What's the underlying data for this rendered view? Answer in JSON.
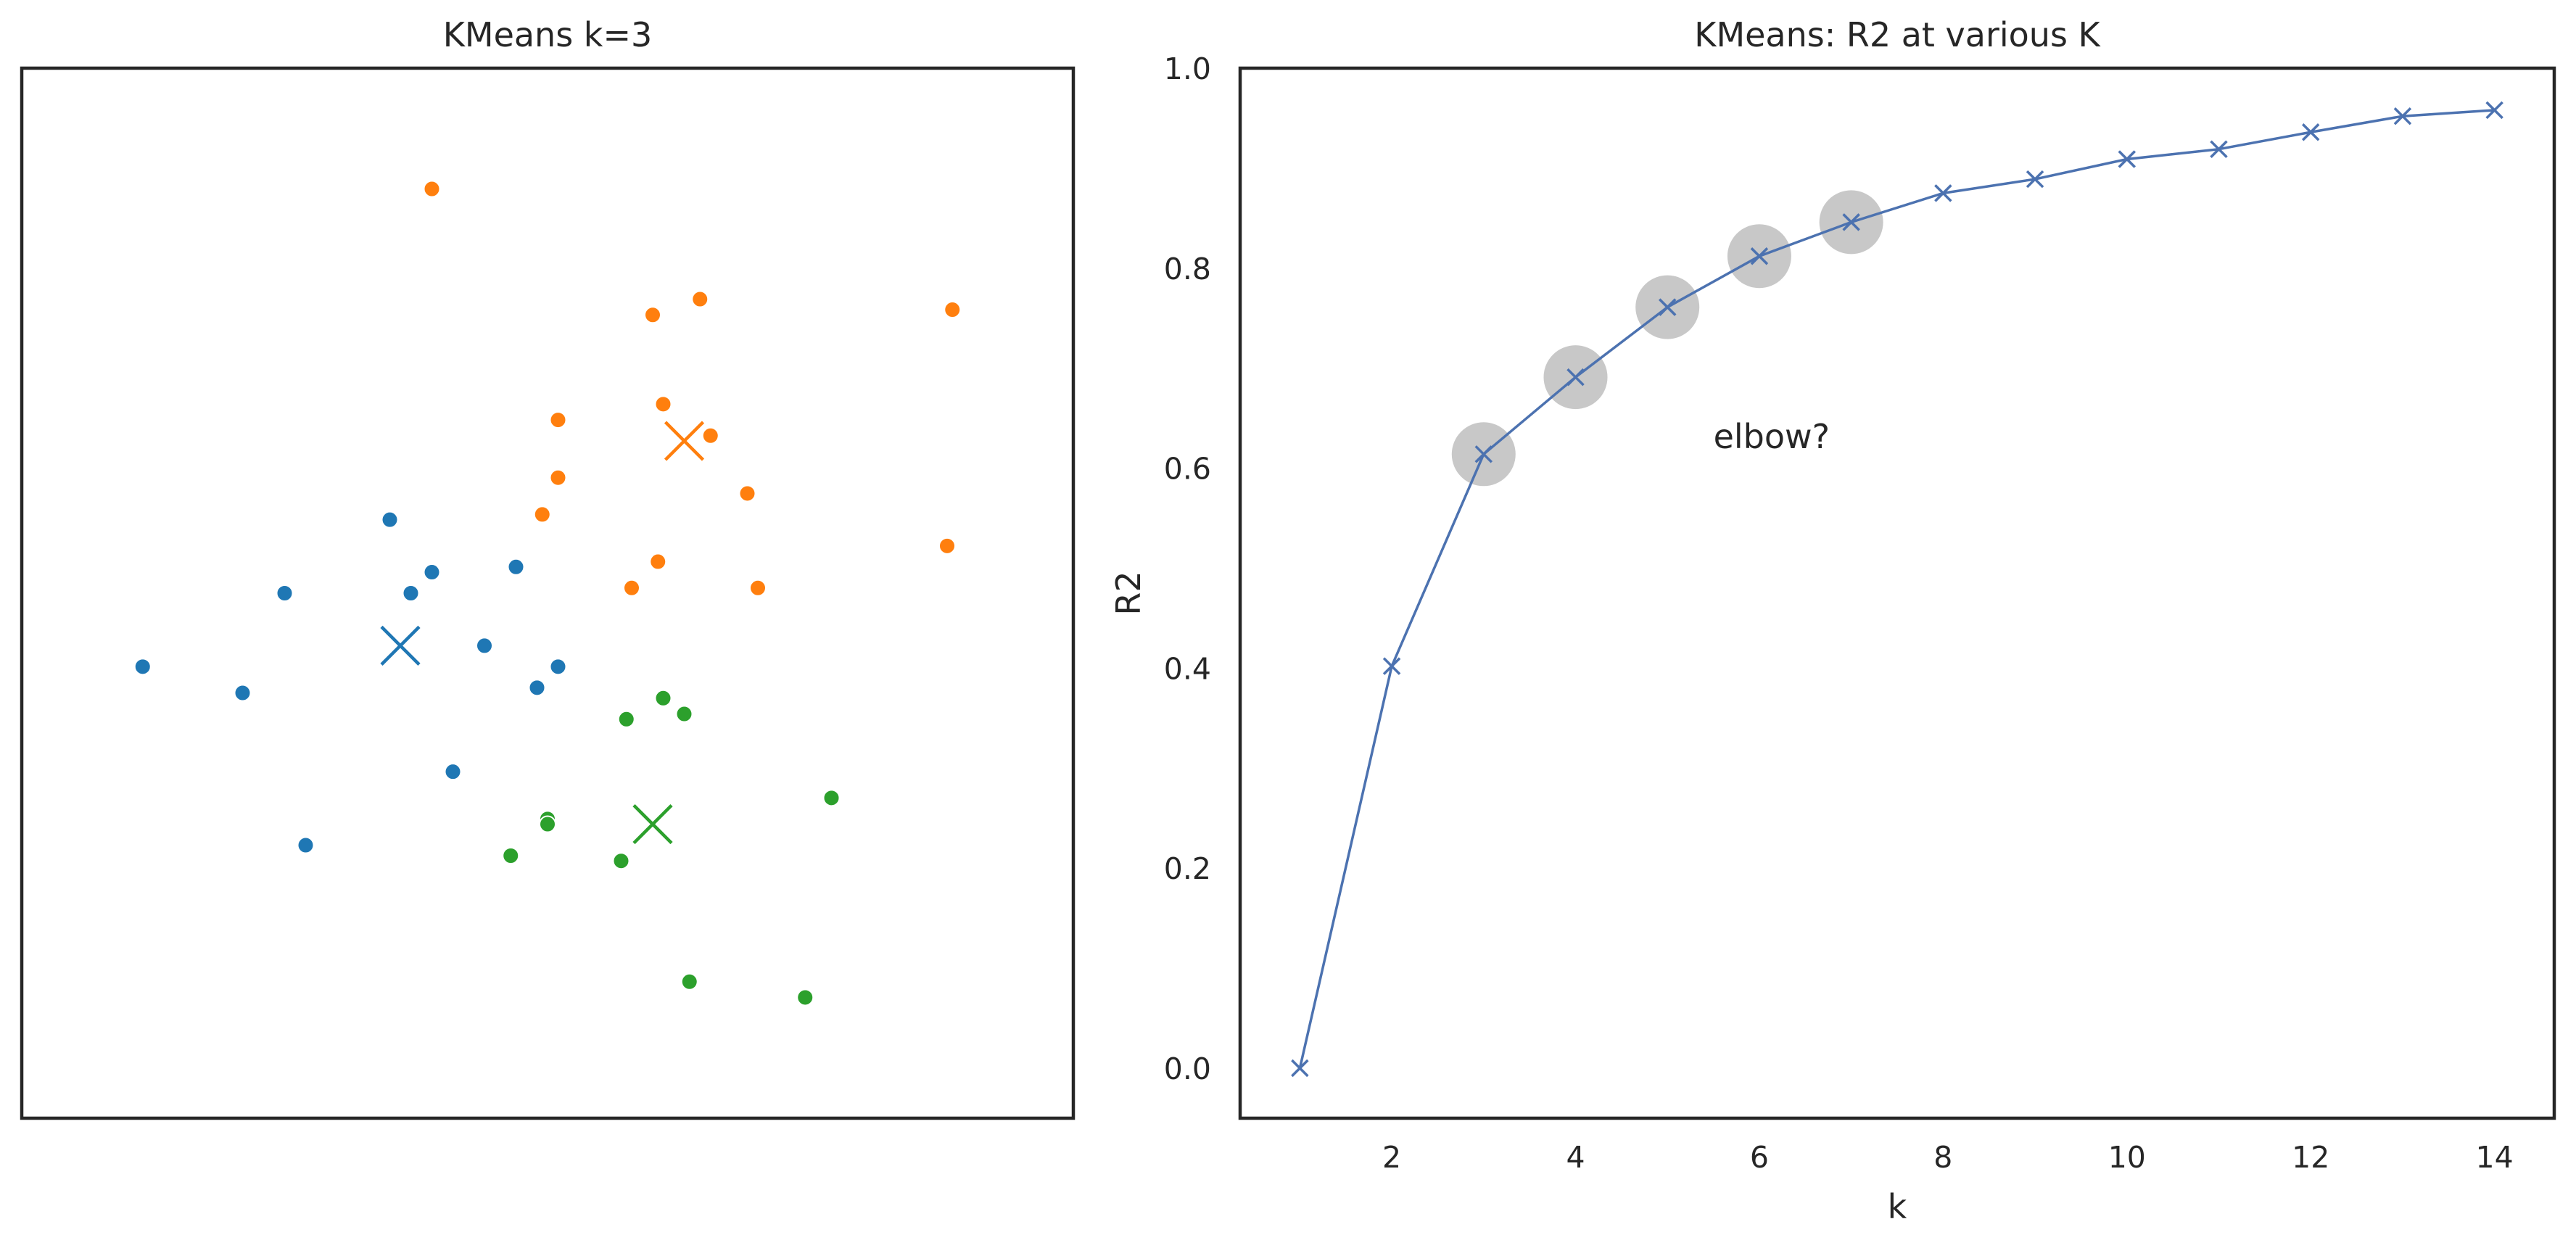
{
  "chart_data": [
    {
      "type": "scatter",
      "title": "KMeans k=3",
      "xlim": [
        0,
        10
      ],
      "ylim": [
        0,
        10
      ],
      "ticks_visible": false,
      "grid": false,
      "colors": {
        "cluster_0": "#1f77b4",
        "cluster_1": "#ff7f0e",
        "cluster_2": "#2ca02c"
      },
      "clusters": [
        {
          "color": "#1f77b4",
          "points": [
            {
              "x": 3.5,
              "y": 5.7
            },
            {
              "x": 2.5,
              "y": 5.0
            },
            {
              "x": 3.7,
              "y": 5.0
            },
            {
              "x": 3.9,
              "y": 5.2
            },
            {
              "x": 4.7,
              "y": 5.25
            },
            {
              "x": 4.4,
              "y": 4.5
            },
            {
              "x": 5.1,
              "y": 4.3
            },
            {
              "x": 4.9,
              "y": 4.1
            },
            {
              "x": 1.15,
              "y": 4.3
            },
            {
              "x": 2.1,
              "y": 4.05
            },
            {
              "x": 4.1,
              "y": 3.3
            },
            {
              "x": 2.7,
              "y": 2.6
            }
          ],
          "centroid": {
            "x": 3.6,
            "y": 4.5
          }
        },
        {
          "color": "#ff7f0e",
          "points": [
            {
              "x": 3.9,
              "y": 8.85
            },
            {
              "x": 6.0,
              "y": 7.65
            },
            {
              "x": 6.45,
              "y": 7.8
            },
            {
              "x": 8.85,
              "y": 7.7
            },
            {
              "x": 6.1,
              "y": 6.8
            },
            {
              "x": 5.1,
              "y": 6.65
            },
            {
              "x": 6.55,
              "y": 6.5
            },
            {
              "x": 5.1,
              "y": 6.1
            },
            {
              "x": 6.9,
              "y": 5.95
            },
            {
              "x": 4.95,
              "y": 5.75
            },
            {
              "x": 6.05,
              "y": 5.3
            },
            {
              "x": 5.8,
              "y": 5.05
            },
            {
              "x": 7.0,
              "y": 5.05
            },
            {
              "x": 8.8,
              "y": 5.45
            }
          ],
          "centroid": {
            "x": 6.3,
            "y": 6.45
          }
        },
        {
          "color": "#2ca02c",
          "points": [
            {
              "x": 6.1,
              "y": 4.0
            },
            {
              "x": 6.3,
              "y": 3.85
            },
            {
              "x": 5.75,
              "y": 3.8
            },
            {
              "x": 7.7,
              "y": 3.05
            },
            {
              "x": 5.0,
              "y": 2.85
            },
            {
              "x": 5.0,
              "y": 2.8
            },
            {
              "x": 4.65,
              "y": 2.5
            },
            {
              "x": 5.7,
              "y": 2.45
            },
            {
              "x": 6.35,
              "y": 1.3
            },
            {
              "x": 7.45,
              "y": 1.15
            }
          ],
          "centroid": {
            "x": 6.0,
            "y": 2.8
          }
        }
      ]
    },
    {
      "type": "line",
      "title": "KMeans: R2 at various K",
      "xlabel": "k",
      "ylabel": "R2",
      "xlim": [
        0.35,
        14.65
      ],
      "ylim": [
        -0.05,
        1.0
      ],
      "xticks": [
        2,
        4,
        6,
        8,
        10,
        12,
        14
      ],
      "yticks": [
        0.0,
        0.2,
        0.4,
        0.6,
        0.8,
        1.0
      ],
      "ytick_labels": [
        "0.0",
        "0.2",
        "0.4",
        "0.6",
        "0.8",
        "1.0"
      ],
      "grid": false,
      "marker": "x",
      "line_color": "#4c72b0",
      "highlight_color": "#c8c8c8",
      "x": [
        1,
        2,
        3,
        4,
        5,
        6,
        7,
        8,
        9,
        10,
        11,
        12,
        13,
        14
      ],
      "y": [
        0.0,
        0.402,
        0.614,
        0.691,
        0.761,
        0.812,
        0.846,
        0.875,
        0.889,
        0.909,
        0.919,
        0.936,
        0.952,
        0.958
      ],
      "highlight_k": [
        3,
        4,
        5,
        6,
        7
      ],
      "annotation": {
        "text": "elbow?",
        "x": 5.5,
        "y": 0.62
      }
    }
  ]
}
